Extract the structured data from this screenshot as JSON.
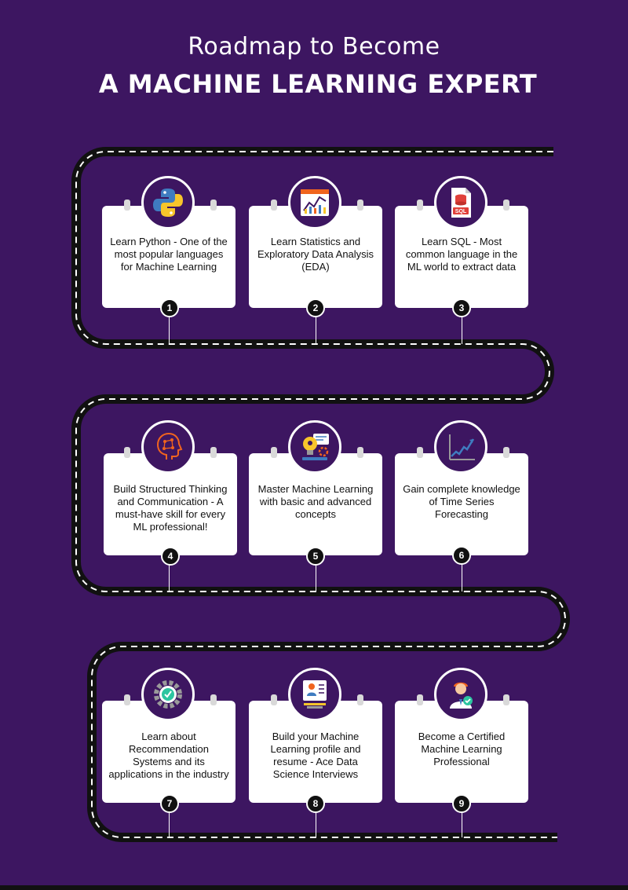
{
  "title": {
    "line1": "Roadmap to Become",
    "line2": "A MACHINE LEARNING EXPERT"
  },
  "colors": {
    "background": "#3d1661",
    "road": "#111111",
    "card": "#ffffff",
    "accent_orange": "#f0641e"
  },
  "steps": [
    {
      "number": "1",
      "text": "Learn Python - One of the most popular languages for Machine Learning",
      "icon": "python-icon"
    },
    {
      "number": "2",
      "text": "Learn Statistics and Exploratory Data Analysis (EDA)",
      "icon": "statistics-icon"
    },
    {
      "number": "3",
      "text": "Learn SQL - Most common language in the ML world to extract data",
      "icon": "sql-icon"
    },
    {
      "number": "4",
      "text": "Build Structured Thinking and Communication - A must-have skill for every ML professional!",
      "icon": "brain-icon"
    },
    {
      "number": "5",
      "text": "Master Machine Learning with basic and advanced concepts",
      "icon": "ml-lightbulb-icon"
    },
    {
      "number": "6",
      "text": "Gain complete knowledge of Time Series Forecasting",
      "icon": "time-series-icon"
    },
    {
      "number": "7",
      "text": "Learn about Recommendation Systems and its applications in the industry",
      "icon": "recommendation-gear-icon"
    },
    {
      "number": "8",
      "text": "Build your Machine Learning profile and resume - Ace Data Science Interviews",
      "icon": "resume-icon"
    },
    {
      "number": "9",
      "text": "Become a Certified Machine Learning Professional",
      "icon": "certified-professional-icon"
    }
  ]
}
